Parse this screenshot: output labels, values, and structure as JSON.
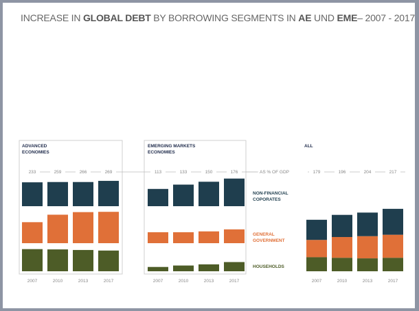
{
  "title": {
    "part1": "INCREASE IN ",
    "bold1": "GLOBAL DEBT",
    "part2": " BY BORROWING SEGMENTS IN ",
    "bold2": "AE",
    "part3": " UND ",
    "bold3": "EME",
    "part4": "– 2007 - 2017"
  },
  "colors": {
    "non_financial": "#1f3e4e",
    "government": "#e07038",
    "households": "#4d5c27",
    "panel_title": "#1e2a4a"
  },
  "chart_data": {
    "type": "bar",
    "stacked_panel": "all",
    "unit_label": "AS % OF GDP",
    "categories": [
      "2007",
      "2010",
      "2013",
      "2017"
    ],
    "legend": [
      {
        "key": "nfc",
        "label_lines": [
          "NON-FINANCIAL",
          "COPORATES"
        ]
      },
      {
        "key": "gg",
        "label_lines": [
          "GENERAL",
          "GOVERNMENT"
        ]
      },
      {
        "key": "hh",
        "label_lines": [
          "HOUSEHOLDS"
        ]
      }
    ],
    "panels": [
      {
        "key": "ae",
        "title_lines": [
          "ADVANCED",
          "ECONOMIES"
        ],
        "totals": [
          "233",
          "259",
          "266",
          "269"
        ],
        "series": {
          "nfc": [
            83,
            84,
            84,
            88
          ],
          "gg": [
            73,
            99,
            108,
            109
          ],
          "hh": [
            77,
            76,
            74,
            72
          ]
        }
      },
      {
        "key": "eme",
        "title_lines": [
          "EMERGING MARKETS",
          "ECONOMIES"
        ],
        "totals": [
          "113",
          "133",
          "150",
          "176"
        ],
        "series": {
          "nfc": [
            60,
            75,
            85,
            96
          ],
          "gg": [
            38,
            38,
            41,
            48
          ],
          "hh": [
            15,
            20,
            24,
            32
          ]
        }
      },
      {
        "key": "all",
        "title_lines": [
          "ALL"
        ],
        "totals": [
          "179",
          "196",
          "204",
          "217"
        ],
        "series": {
          "nfc": [
            70,
            77,
            82,
            90
          ],
          "gg": [
            60,
            72,
            77,
            80
          ],
          "hh": [
            49,
            47,
            45,
            47
          ]
        }
      }
    ]
  }
}
